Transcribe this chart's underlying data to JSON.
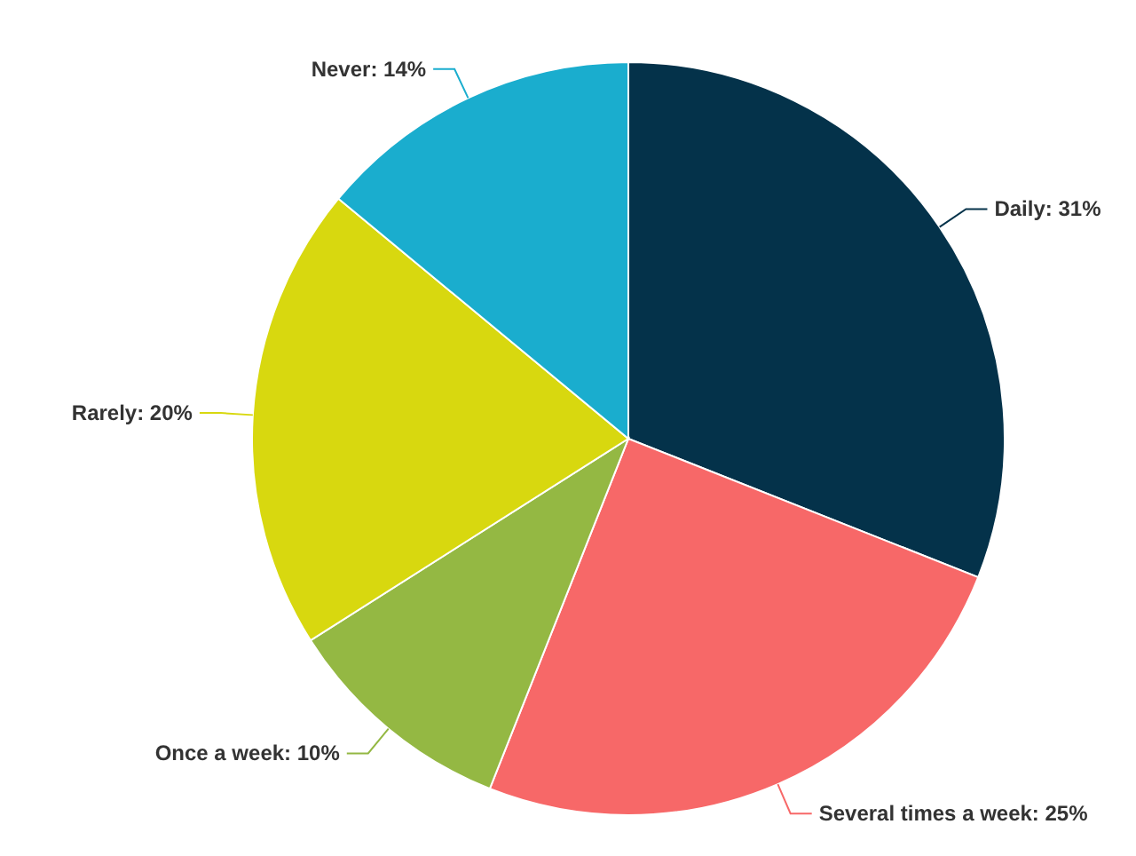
{
  "chart_data": {
    "type": "pie",
    "categories": [
      "Daily: 31%",
      "Several times a week: 25%",
      "Once a week: 10%",
      "Rarely: 20%",
      "Never: 14%"
    ],
    "values": [
      31,
      25,
      10,
      20,
      14
    ],
    "colors": [
      "#04324a",
      "#f76868",
      "#94b843",
      "#d8d80f",
      "#1aadce"
    ],
    "legend": false
  }
}
